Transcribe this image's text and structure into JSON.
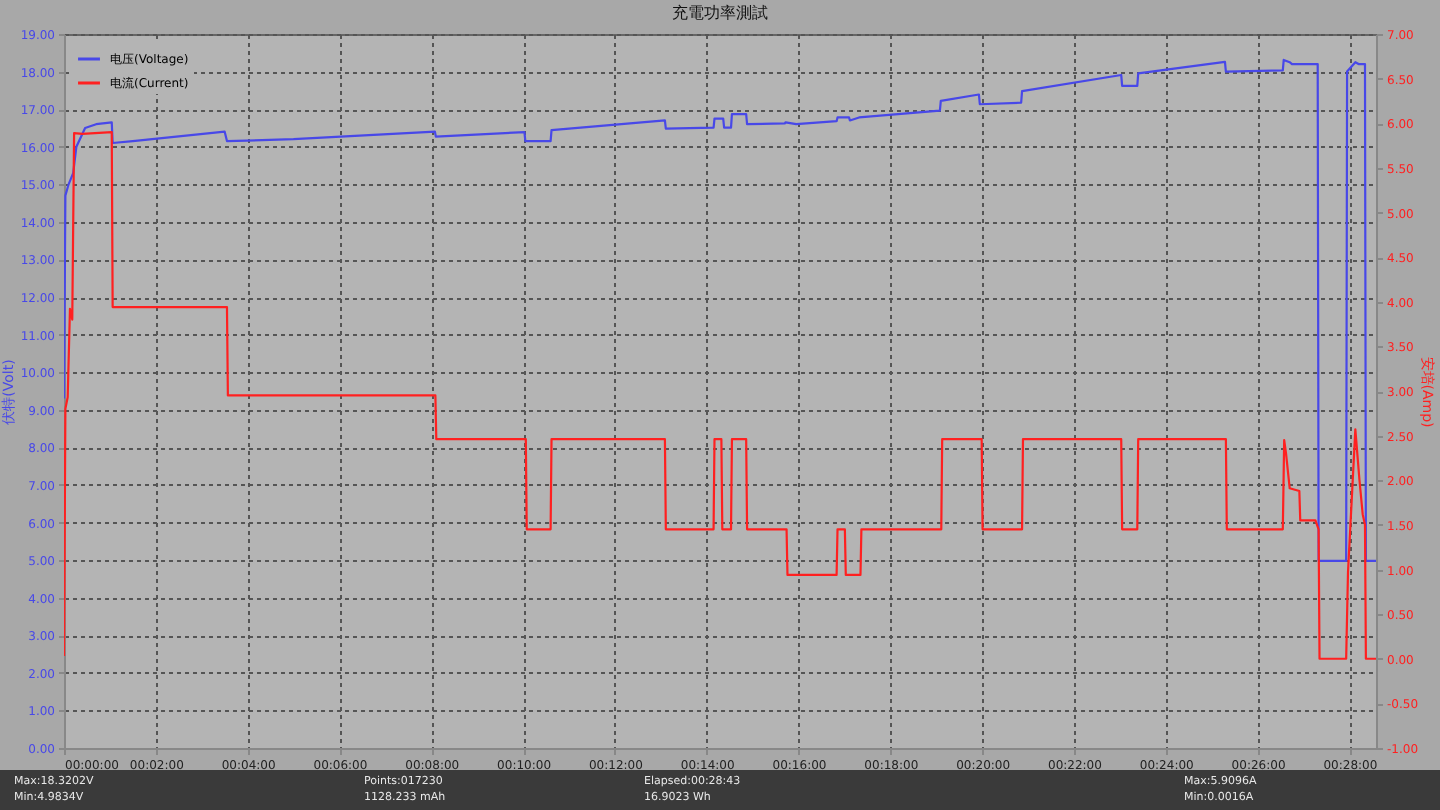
{
  "chart_data": {
    "type": "line",
    "title": "充電功率測試",
    "xlabel": null,
    "ylabel": "伏特(Volt)",
    "y2label": "安培(Amp)",
    "xlim": [
      0,
      28.58
    ],
    "xticks": [
      {
        "value": 0,
        "label": "00:00:00"
      },
      {
        "value": 2,
        "label": "00:02:00"
      },
      {
        "value": 4,
        "label": "00:04:00"
      },
      {
        "value": 6,
        "label": "00:06:00"
      },
      {
        "value": 8,
        "label": "00:08:00"
      },
      {
        "value": 10,
        "label": "00:10:00"
      },
      {
        "value": 12,
        "label": "00:12:00"
      },
      {
        "value": 14,
        "label": "00:14:00"
      },
      {
        "value": 16,
        "label": "00:16:00"
      },
      {
        "value": 18,
        "label": "00:18:00"
      },
      {
        "value": 20,
        "label": "00:20:00"
      },
      {
        "value": 22,
        "label": "00:22:00"
      },
      {
        "value": 24,
        "label": "00:24:00"
      },
      {
        "value": 26,
        "label": "00:26:00"
      },
      {
        "value": 28,
        "label": "00:28:00"
      }
    ],
    "ylim": [
      0,
      19
    ],
    "yticks": [
      {
        "value": 0,
        "label": "0.00"
      },
      {
        "value": 1,
        "label": "1.00"
      },
      {
        "value": 2,
        "label": "2.00"
      },
      {
        "value": 3,
        "label": "3.00"
      },
      {
        "value": 4,
        "label": "4.00"
      },
      {
        "value": 5,
        "label": "5.00"
      },
      {
        "value": 6,
        "label": "6.00"
      },
      {
        "value": 7,
        "label": "7.00"
      },
      {
        "value": 8,
        "label": "8.00"
      },
      {
        "value": 9,
        "label": "9.00"
      },
      {
        "value": 10,
        "label": "10.00"
      },
      {
        "value": 11,
        "label": "11.00"
      },
      {
        "value": 12,
        "label": "12.00"
      },
      {
        "value": 13,
        "label": "13.00"
      },
      {
        "value": 14,
        "label": "14.00"
      },
      {
        "value": 15,
        "label": "15.00"
      },
      {
        "value": 16,
        "label": "16.00"
      },
      {
        "value": 17,
        "label": "17.00"
      },
      {
        "value": 18,
        "label": "18.00"
      },
      {
        "value": 19,
        "label": "19.00"
      }
    ],
    "y2lim": [
      -1,
      7
    ],
    "y2ticks": [
      {
        "value": -1,
        "label": "-1.00"
      },
      {
        "value": -0.5,
        "label": "-0.50"
      },
      {
        "value": 0,
        "label": "0.00"
      },
      {
        "value": 0.5,
        "label": "0.50"
      },
      {
        "value": 1,
        "label": "1.00"
      },
      {
        "value": 1.5,
        "label": "1.50"
      },
      {
        "value": 2,
        "label": "2.00"
      },
      {
        "value": 2.5,
        "label": "2.50"
      },
      {
        "value": 3,
        "label": "3.00"
      },
      {
        "value": 3.5,
        "label": "3.50"
      },
      {
        "value": 4,
        "label": "4.00"
      },
      {
        "value": 4.5,
        "label": "4.50"
      },
      {
        "value": 5,
        "label": "5.00"
      },
      {
        "value": 5.5,
        "label": "5.50"
      },
      {
        "value": 6,
        "label": "6.00"
      },
      {
        "value": 6.5,
        "label": "6.50"
      },
      {
        "value": 7,
        "label": "7.00"
      }
    ],
    "grid": true,
    "legend": "top left",
    "annotations": [
      "Max:18.3202V",
      "Min:4.9834V",
      "Points:017230",
      "1128.233 mAh",
      "Elapsed:00:28:43",
      "16.9023 Wh",
      "Max:5.9096A",
      "Min:0.0016A"
    ],
    "series": [
      {
        "name": "电压(Voltage)",
        "color": "#4848e8",
        "axis": "y",
        "x": [
          0,
          0.03,
          0.1,
          0.2,
          0.27,
          0.46,
          0.7,
          1.04,
          1.06,
          1.5,
          3.5,
          3.55,
          5,
          8.08,
          8.1,
          10.03,
          10.05,
          10.6,
          10.62,
          13.09,
          13.11,
          14.15,
          14.17,
          14.36,
          14.38,
          14.53,
          14.55,
          14.86,
          14.88,
          15.7,
          15.72,
          15.95,
          16.83,
          16.85,
          17.1,
          17.12,
          17.32,
          19.08,
          19.1,
          19.93,
          19.95,
          20.85,
          20.87,
          23.03,
          23.05,
          23.38,
          23.4,
          25.29,
          25.31,
          26.55,
          26.57,
          26.7,
          26.75,
          27.31,
          27.33,
          27.93,
          27.95,
          28.13,
          28.2,
          28.34,
          28.36,
          28.58
        ],
        "values": [
          9.3,
          14.7,
          15.0,
          15.3,
          16.0,
          16.5,
          16.6,
          16.65,
          16.1,
          16.15,
          16.4,
          16.15,
          16.2,
          16.4,
          16.27,
          16.39,
          16.15,
          16.15,
          16.44,
          16.7,
          16.48,
          16.51,
          16.75,
          16.75,
          16.51,
          16.51,
          16.87,
          16.87,
          16.6,
          16.62,
          16.65,
          16.6,
          16.68,
          16.78,
          16.78,
          16.7,
          16.78,
          16.96,
          17.22,
          17.39,
          17.13,
          17.17,
          17.48,
          17.91,
          17.62,
          17.62,
          17.95,
          18.26,
          18.0,
          18.03,
          18.31,
          18.25,
          18.2,
          18.2,
          4.98,
          4.98,
          18.0,
          18.25,
          18.2,
          18.2,
          4.98,
          4.98
        ]
      },
      {
        "name": "电流(Current)",
        "color": "#ff2020",
        "axis": "y2",
        "x": [
          0,
          0.03,
          0.08,
          0.13,
          0.18,
          0.22,
          0.4,
          1.04,
          1.06,
          3.55,
          3.57,
          8.09,
          8.11,
          10.06,
          10.08,
          10.6,
          10.62,
          13.09,
          13.11,
          14.15,
          14.17,
          14.32,
          14.34,
          14.53,
          14.55,
          14.86,
          14.88,
          15.74,
          15.76,
          16.83,
          16.85,
          17.01,
          17.03,
          17.35,
          17.37,
          19.11,
          19.13,
          19.99,
          20.01,
          20.87,
          20.89,
          23.03,
          23.05,
          23.38,
          23.4,
          25.31,
          25.33,
          26.55,
          26.58,
          26.62,
          26.7,
          26.91,
          26.93,
          27.26,
          27.33,
          27.35,
          27.93,
          27.97,
          28.13,
          28.22,
          28.29,
          28.34,
          28.36,
          28.58
        ],
        "values": [
          0.03,
          2.8,
          2.93,
          3.92,
          3.8,
          5.89,
          5.88,
          5.9,
          3.94,
          3.94,
          2.95,
          2.95,
          2.46,
          2.46,
          1.45,
          1.45,
          2.46,
          2.46,
          1.45,
          1.45,
          2.46,
          2.46,
          1.45,
          1.45,
          2.46,
          2.46,
          1.45,
          1.45,
          0.94,
          0.94,
          1.45,
          1.45,
          0.94,
          0.94,
          1.45,
          1.45,
          2.46,
          2.46,
          1.45,
          1.45,
          2.46,
          2.46,
          1.45,
          1.45,
          2.46,
          2.46,
          1.45,
          1.45,
          2.45,
          2.3,
          1.91,
          1.88,
          1.55,
          1.55,
          1.45,
          0.0,
          0.0,
          0.97,
          2.57,
          2.0,
          1.62,
          1.5,
          0.0,
          0.0
        ]
      }
    ]
  }
}
